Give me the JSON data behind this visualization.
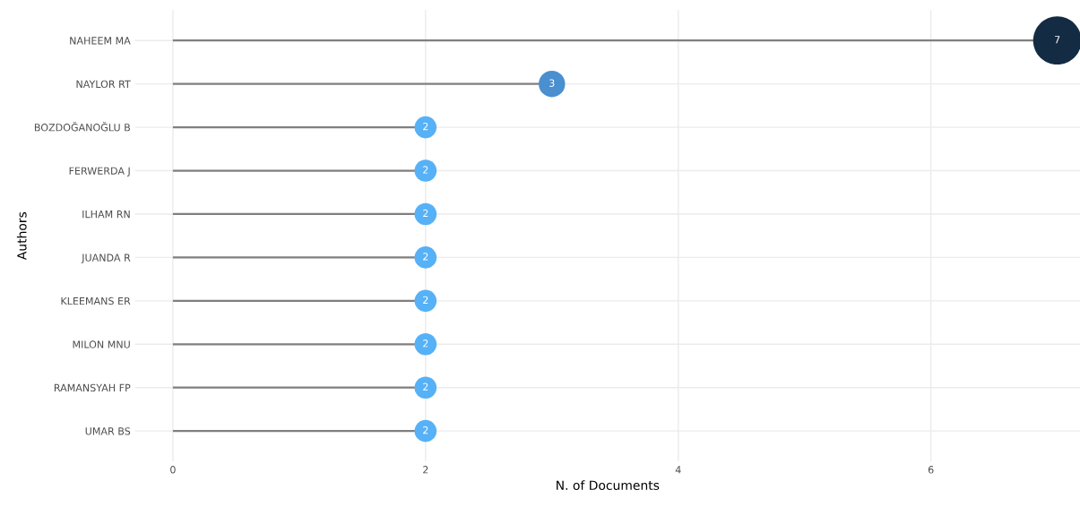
{
  "chart_data": {
    "type": "lollipop",
    "orientation": "horizontal",
    "xlabel": "N. of Documents",
    "ylabel": "Authors",
    "categories": [
      "NAHEEM MA",
      "NAYLOR RT",
      "BOZDOĞANOĞLU B",
      "FERWERDA J",
      "ILHAM RN",
      "JUANDA R",
      "KLEEMANS ER",
      "MILON MNU",
      "RAMANSYAH FP",
      "UMAR BS"
    ],
    "values": [
      7,
      3,
      2,
      2,
      2,
      2,
      2,
      2,
      2,
      2
    ],
    "sizes": [
      1,
      0.3,
      0.21,
      0.21,
      0.21,
      0.21,
      0.21,
      0.21,
      0.21,
      0.21
    ],
    "colors": [
      "#132b43",
      "#4a8fcf",
      "#56b1f7",
      "#56b1f7",
      "#56b1f7",
      "#56b1f7",
      "#56b1f7",
      "#56b1f7",
      "#56b1f7",
      "#56b1f7"
    ],
    "xlim": [
      -0.3,
      7.18
    ],
    "xticks": [
      0,
      2,
      4,
      6
    ],
    "grid": true,
    "data_labels": true,
    "legend": false
  }
}
